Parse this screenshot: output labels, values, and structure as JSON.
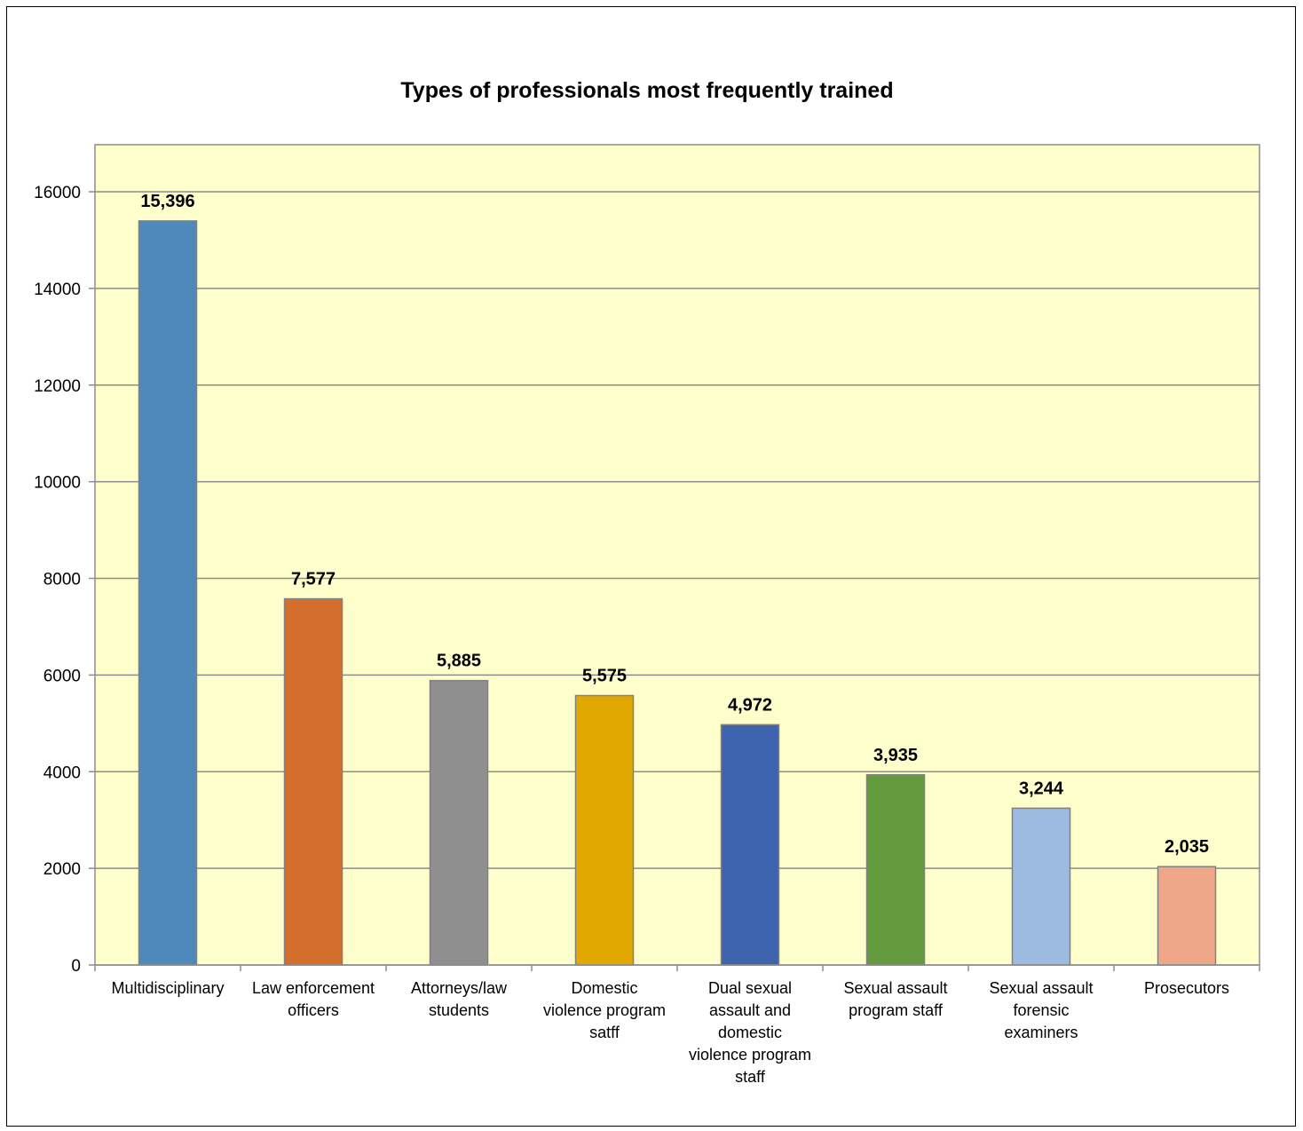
{
  "chart_data": {
    "type": "bar",
    "title": "Types of professionals most frequently trained",
    "xlabel": "",
    "ylabel": "",
    "ylim": [
      0,
      17000
    ],
    "yticks": [
      0,
      2000,
      4000,
      6000,
      8000,
      10000,
      12000,
      14000,
      16000
    ],
    "grid": true,
    "legend": "none",
    "plot_background": "#FFFFCC",
    "categories": [
      [
        "Multidisciplinary"
      ],
      [
        "Law enforcement",
        "officers"
      ],
      [
        "Attorneys/law",
        "students"
      ],
      [
        "Domestic",
        "violence program",
        "satff"
      ],
      [
        "Dual sexual",
        "assault and",
        "domestic",
        "violence program",
        "staff"
      ],
      [
        "Sexual assault",
        "program staff"
      ],
      [
        "Sexual assault",
        "forensic",
        "examiners"
      ],
      [
        "Prosecutors"
      ]
    ],
    "values": [
      15396,
      7577,
      5885,
      5575,
      4972,
      3935,
      3244,
      2035
    ],
    "data_labels": [
      "15,396",
      "7,577",
      "5,885",
      "5,575",
      "4,972",
      "3,935",
      "3,244",
      "2,035"
    ],
    "colors": [
      "#4F88BB",
      "#D46E2C",
      "#8F8F8F",
      "#E0A800",
      "#3D64AC",
      "#659B3F",
      "#9DBAE0",
      "#EFA789"
    ]
  }
}
